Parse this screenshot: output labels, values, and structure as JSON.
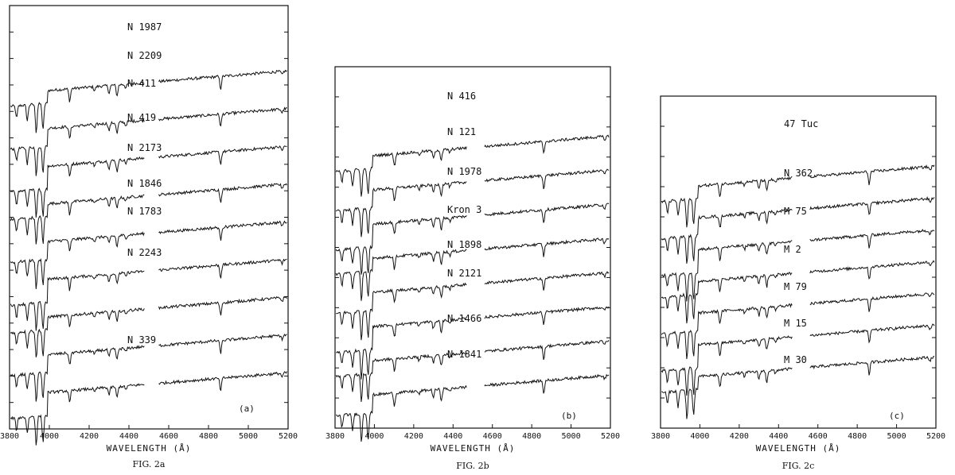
{
  "chart_data": [
    {
      "type": "line",
      "panel_label": "(a)",
      "caption": "FIG. 2a",
      "xlabel": "WAVELENGTH (Å)",
      "xlim": [
        3800,
        5200
      ],
      "x_ticks": [
        "3800",
        "4000",
        "4200",
        "4400",
        "4600",
        "4800",
        "5000",
        "5200"
      ],
      "series": [
        {
          "name": "N 1987"
        },
        {
          "name": "N 2209"
        },
        {
          "name": "N 411"
        },
        {
          "name": "N 419"
        },
        {
          "name": "N 2173"
        },
        {
          "name": "N 1846"
        },
        {
          "name": "N 1783"
        },
        {
          "name": "N 2243"
        },
        {
          "name": "N 339"
        }
      ]
    },
    {
      "type": "line",
      "panel_label": "(b)",
      "caption": "FIG. 2b",
      "xlabel": "WAVELENGTH (Å)",
      "xlim": [
        3800,
        5200
      ],
      "x_ticks": [
        "3800",
        "4000",
        "4200",
        "4400",
        "4600",
        "4800",
        "5000",
        "5200"
      ],
      "series": [
        {
          "name": "N 416"
        },
        {
          "name": "N 121"
        },
        {
          "name": "N 1978"
        },
        {
          "name": "Kron 3"
        },
        {
          "name": "N 1898"
        },
        {
          "name": "N 2121"
        },
        {
          "name": "N 1466"
        },
        {
          "name": "N 1841"
        }
      ]
    },
    {
      "type": "line",
      "panel_label": "(c)",
      "caption": "FIG. 2c",
      "xlabel": "WAVELENGTH (Å)",
      "xlim": [
        3800,
        5200
      ],
      "x_ticks": [
        "3800",
        "4000",
        "4200",
        "4400",
        "4600",
        "4800",
        "5000",
        "5200"
      ],
      "series": [
        {
          "name": "47 Tuc"
        },
        {
          "name": "N 362"
        },
        {
          "name": "M 75"
        },
        {
          "name": "M 2"
        },
        {
          "name": "M 79"
        },
        {
          "name": "M 15"
        },
        {
          "name": "M 30"
        }
      ]
    }
  ]
}
